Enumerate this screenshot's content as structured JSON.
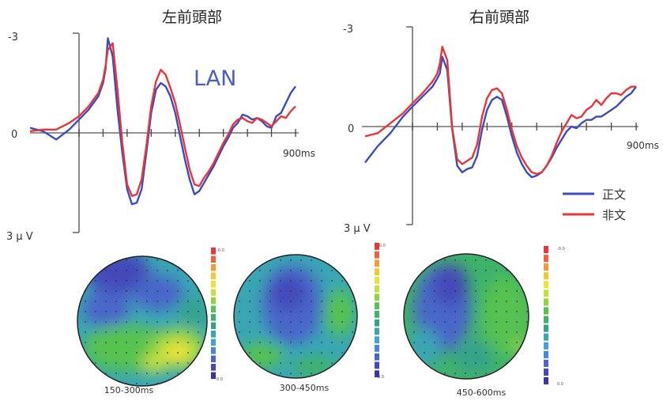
{
  "chart_data": [
    {
      "type": "line",
      "title": "左前頭部",
      "y_top_label": "-3",
      "y_zero_label": "0",
      "y_bottom_label": "3 μ V",
      "x_end_label": "900ms",
      "annotation": "LAN",
      "xlim": [
        -150,
        900
      ],
      "ylim": [
        -3,
        3
      ],
      "y_inverted": true,
      "series": [
        {
          "name": "正文",
          "color": "#3b4cc0",
          "x": [
            -150,
            -110,
            -70,
            -30,
            0,
            40,
            80,
            100,
            110,
            120,
            140,
            160,
            180,
            200,
            220,
            240,
            260,
            280,
            300,
            320,
            340,
            360,
            380,
            400,
            420,
            440,
            460,
            480,
            500,
            520,
            540,
            560,
            580,
            600,
            620,
            640,
            660,
            680,
            700,
            720,
            740,
            760,
            780,
            800,
            820,
            840,
            860,
            880,
            900
          ],
          "y": [
            -0.15,
            -0.05,
            0.2,
            -0.1,
            -0.4,
            -0.7,
            -1.1,
            -1.5,
            -1.9,
            -2.85,
            -2.3,
            -0.7,
            0.6,
            1.7,
            2.15,
            2.1,
            1.7,
            0.6,
            -0.6,
            -1.3,
            -1.5,
            -1.4,
            -1.1,
            -0.6,
            0.1,
            0.8,
            1.4,
            1.85,
            1.75,
            1.5,
            1.25,
            1.0,
            0.7,
            0.4,
            0.15,
            -0.15,
            -0.3,
            -0.55,
            -0.5,
            -0.4,
            -0.45,
            -0.35,
            -0.2,
            -0.15,
            -0.5,
            -0.6,
            -0.9,
            -1.2,
            -1.4
          ]
        },
        {
          "name": "非文",
          "color": "#e8353a",
          "x": [
            -150,
            -110,
            -70,
            -30,
            0,
            40,
            80,
            100,
            110,
            120,
            140,
            160,
            180,
            200,
            220,
            240,
            260,
            280,
            300,
            320,
            340,
            360,
            380,
            400,
            420,
            440,
            460,
            480,
            500,
            520,
            540,
            560,
            580,
            600,
            620,
            640,
            660,
            680,
            700,
            720,
            740,
            760,
            780,
            800,
            820,
            840,
            860,
            880,
            900
          ],
          "y": [
            -0.05,
            -0.1,
            -0.1,
            -0.3,
            -0.5,
            -0.8,
            -1.2,
            -1.6,
            -2.0,
            -2.5,
            -2.7,
            -1.3,
            0.3,
            1.55,
            1.9,
            1.85,
            1.4,
            0.4,
            -0.8,
            -1.55,
            -1.9,
            -1.75,
            -1.35,
            -0.9,
            -0.25,
            0.45,
            1.1,
            1.55,
            1.6,
            1.35,
            1.15,
            0.9,
            0.6,
            0.3,
            0.05,
            -0.25,
            -0.4,
            -0.45,
            -0.35,
            -0.3,
            -0.45,
            -0.4,
            -0.3,
            -0.2,
            -0.35,
            -0.5,
            -0.45,
            -0.65,
            -0.8
          ]
        }
      ]
    },
    {
      "type": "line",
      "title": "右前頭部",
      "y_top_label": "-3",
      "y_zero_label": "0",
      "y_bottom_label": "3 μ V",
      "x_end_label": "900ms",
      "xlim": [
        -150,
        900
      ],
      "ylim": [
        -3,
        3
      ],
      "y_inverted": true,
      "series": [
        {
          "name": "正文",
          "color": "#3b4cc0",
          "x": [
            -150,
            -110,
            -70,
            -30,
            0,
            40,
            80,
            100,
            110,
            120,
            140,
            160,
            180,
            200,
            220,
            240,
            260,
            280,
            300,
            320,
            340,
            360,
            380,
            400,
            420,
            440,
            460,
            480,
            500,
            520,
            540,
            560,
            580,
            600,
            620,
            640,
            660,
            680,
            700,
            720,
            740,
            760,
            780,
            800,
            820,
            840,
            860,
            880,
            900
          ],
          "y": [
            1.1,
            0.6,
            0.2,
            -0.3,
            -0.6,
            -0.9,
            -1.2,
            -1.45,
            -1.6,
            -2.1,
            -1.7,
            0.1,
            1.2,
            1.4,
            1.3,
            1.25,
            0.9,
            0.1,
            -0.5,
            -0.8,
            -0.9,
            -0.8,
            -0.3,
            0.3,
            0.8,
            1.15,
            1.4,
            1.55,
            1.5,
            1.4,
            1.2,
            0.95,
            0.65,
            0.4,
            0.15,
            0,
            0.05,
            -0.1,
            -0.2,
            -0.2,
            -0.3,
            -0.3,
            -0.4,
            -0.5,
            -0.6,
            -0.75,
            -0.9,
            -1.0,
            -1.2
          ]
        },
        {
          "name": "非文",
          "color": "#e8353a",
          "x": [
            -150,
            -110,
            -70,
            -30,
            0,
            40,
            80,
            100,
            110,
            120,
            140,
            160,
            180,
            200,
            220,
            240,
            260,
            280,
            300,
            320,
            340,
            360,
            380,
            400,
            420,
            440,
            460,
            480,
            500,
            520,
            540,
            560,
            580,
            600,
            620,
            640,
            660,
            680,
            700,
            720,
            740,
            760,
            780,
            800,
            820,
            840,
            860,
            880,
            900
          ],
          "y": [
            0.3,
            0.2,
            -0.1,
            -0.4,
            -0.7,
            -1.0,
            -1.35,
            -1.6,
            -1.9,
            -2.4,
            -2.0,
            0.05,
            1.0,
            1.15,
            1.05,
            0.95,
            0.55,
            -0.3,
            -0.85,
            -1.1,
            -1.15,
            -1.0,
            -0.5,
            0.1,
            0.6,
            0.95,
            1.2,
            1.4,
            1.45,
            1.4,
            1.2,
            0.9,
            0.5,
            0.15,
            -0.1,
            -0.35,
            -0.25,
            -0.3,
            -0.5,
            -0.6,
            -0.8,
            -0.65,
            -0.85,
            -1.0,
            -1.0,
            -0.95,
            -1.1,
            -1.2,
            -1.2
          ]
        }
      ]
    }
  ],
  "legend": {
    "items": [
      {
        "label": "正文",
        "color": "#3b4cc0"
      },
      {
        "label": "非文",
        "color": "#e8353a"
      }
    ]
  },
  "topomaps": [
    {
      "caption": "150-300ms",
      "scale_top": "-0.0",
      "scale_bottom": "0.0"
    },
    {
      "caption": "300-450ms",
      "scale_top": "-0.0",
      "scale_bottom": "0.0"
    },
    {
      "caption": "450-600ms",
      "scale_top": "-0.0",
      "scale_bottom": "0.0"
    }
  ],
  "colors": {
    "scale": [
      "#e8353a",
      "#f0603a",
      "#f59a35",
      "#f4c832",
      "#e9e33a",
      "#c5e03c",
      "#8fd443",
      "#57c250",
      "#3fb26a",
      "#35a38a",
      "#3aa6b3",
      "#42a3d3",
      "#4b86d6",
      "#4a66c9",
      "#4548b8",
      "#3b35a3"
    ]
  }
}
